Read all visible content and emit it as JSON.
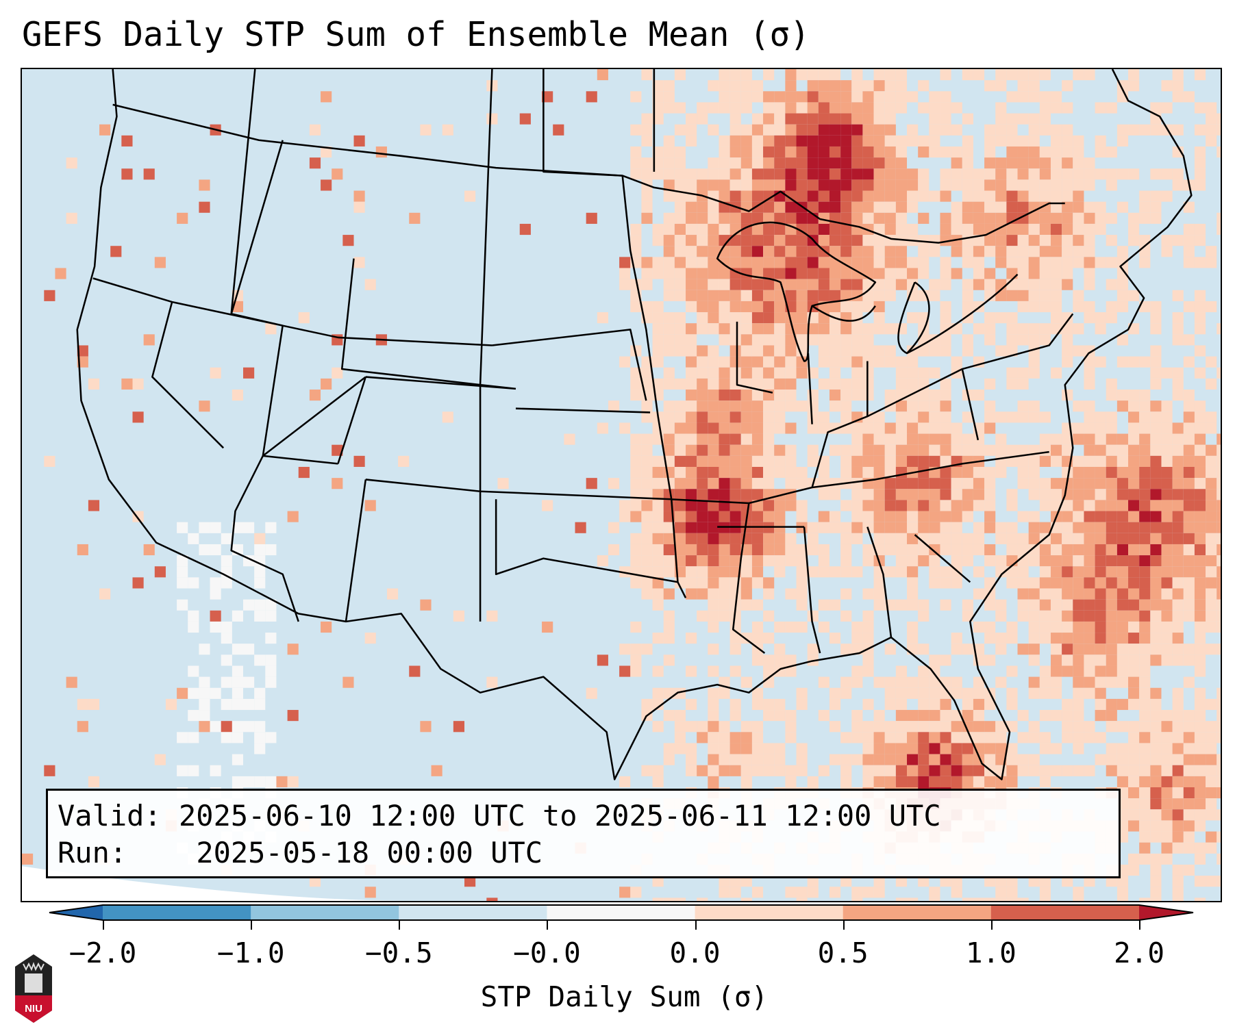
{
  "title": "GEFS Daily STP Sum of Ensemble Mean (σ)",
  "info": {
    "valid_label": "Valid:",
    "valid_value": "2025-06-10 12:00 UTC to 2025-06-11 12:00 UTC",
    "run_label": "Run:",
    "run_value": "2025-05-18 00:00 UTC"
  },
  "colorbar": {
    "label": "STP Daily Sum (σ)",
    "ticks": [
      "−2.0",
      "−1.0",
      "−0.5",
      "−0.0",
      "0.0",
      "0.5",
      "1.0",
      "2.0"
    ],
    "colors": [
      "#2166ac",
      "#4393c3",
      "#92c5de",
      "#d1e5f0",
      "#f7f7f7",
      "#fddbc7",
      "#f4a582",
      "#d6604d",
      "#b2182b"
    ],
    "extend": "both"
  },
  "logo": {
    "text": "NIU"
  }
}
